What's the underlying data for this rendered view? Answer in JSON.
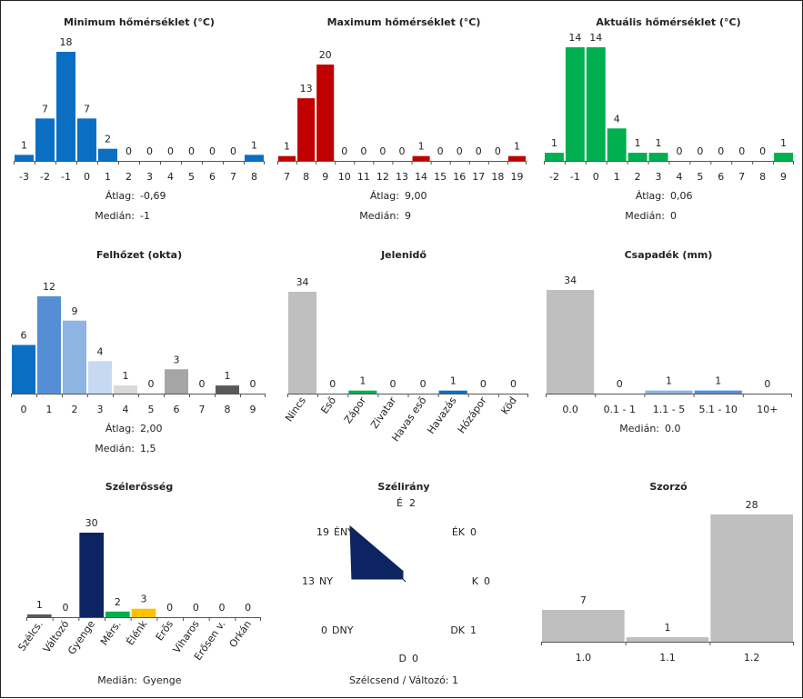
{
  "colors": {
    "blue": "#0a6fc2",
    "red": "#c00000",
    "green": "#00b050",
    "gray": "#bfbfbf",
    "navy": "#0c2461",
    "axis": "#555555",
    "cloud": [
      "#0a6fc2",
      "#558ed5",
      "#8db4e2",
      "#c5d9f1",
      "#d9d9d9",
      "#bfbfbf",
      "#a6a6a6",
      "#808080",
      "#595959",
      "#404040"
    ],
    "weather": [
      "#bfbfbf",
      "#bfbfbf",
      "#00b050",
      "#bfbfbf",
      "#bfbfbf",
      "#0a6fc2",
      "#bfbfbf",
      "#bfbfbf"
    ],
    "precip": [
      "#bfbfbf",
      "#bfbfbf",
      "#8db4e2",
      "#558ed5",
      "#0a6fc2"
    ],
    "wind": [
      "#595959",
      "#bfbfbf",
      "#0c2461",
      "#00b050",
      "#ffc000",
      "#bfbfbf",
      "#bfbfbf",
      "#bfbfbf",
      "#bfbfbf"
    ]
  },
  "chart_data": [
    {
      "id": "min_temp",
      "type": "bar",
      "title": "Minimum hőmérséklet (°C)",
      "categories": [
        "-3",
        "-2",
        "-1",
        "0",
        "1",
        "2",
        "3",
        "4",
        "5",
        "6",
        "7",
        "8"
      ],
      "values": [
        1,
        7,
        18,
        7,
        2,
        0,
        0,
        0,
        0,
        0,
        0,
        1
      ],
      "ylim": [
        0,
        18
      ],
      "stats": [
        {
          "label": "Átlag:",
          "value": "-0,69"
        },
        {
          "label": "Medián:",
          "value": "-1"
        }
      ]
    },
    {
      "id": "max_temp",
      "type": "bar",
      "title": "Maximum hőmérséklet (°C)",
      "categories": [
        "7",
        "8",
        "9",
        "10",
        "11",
        "12",
        "13",
        "14",
        "15",
        "16",
        "17",
        "18",
        "19"
      ],
      "values": [
        1,
        13,
        20,
        0,
        0,
        0,
        0,
        1,
        0,
        0,
        0,
        0,
        1
      ],
      "ylim": [
        0,
        20
      ],
      "stats": [
        {
          "label": "Átlag:",
          "value": "9,00"
        },
        {
          "label": "Medián:",
          "value": "9"
        }
      ]
    },
    {
      "id": "cur_temp",
      "type": "bar",
      "title": "Aktuális hőmérséklet (°C)",
      "categories": [
        "-2",
        "-1",
        "0",
        "1",
        "2",
        "3",
        "4",
        "5",
        "6",
        "7",
        "8",
        "9"
      ],
      "values": [
        1,
        14,
        14,
        4,
        1,
        1,
        0,
        0,
        0,
        0,
        0,
        1
      ],
      "ylim": [
        0,
        14
      ],
      "stats": [
        {
          "label": "Átlag:",
          "value": "0,06"
        },
        {
          "label": "Medián:",
          "value": "0"
        }
      ]
    },
    {
      "id": "cloud",
      "type": "bar",
      "title": "Felhőzet (okta)",
      "categories": [
        "0",
        "1",
        "2",
        "3",
        "4",
        "5",
        "6",
        "7",
        "8",
        "9"
      ],
      "values": [
        6,
        12,
        9,
        4,
        1,
        0,
        3,
        0,
        1,
        0
      ],
      "ylim": [
        0,
        12
      ],
      "stats": [
        {
          "label": "Átlag:",
          "value": "2,00"
        },
        {
          "label": "Medián:",
          "value": "1,5"
        }
      ]
    },
    {
      "id": "weather",
      "type": "bar",
      "title": "Jelenidő",
      "categories": [
        "Nincs",
        "Eső",
        "Zápor",
        "Zivatar",
        "Havas eső",
        "Havazás",
        "Hózápor",
        "Köd"
      ],
      "values": [
        34,
        0,
        1,
        0,
        0,
        1,
        0,
        0
      ],
      "ylim": [
        0,
        34
      ],
      "stats": []
    },
    {
      "id": "precip",
      "type": "bar",
      "title": "Csapadék (mm)",
      "categories": [
        "0.0",
        "0.1 - 1",
        "1.1 - 5",
        "5.1 - 10",
        "10+"
      ],
      "values": [
        34,
        0,
        1,
        1,
        0
      ],
      "ylim": [
        0,
        34
      ],
      "stats": [
        {
          "label": "Medián:",
          "value": "0.0"
        }
      ]
    },
    {
      "id": "wind_strength",
      "type": "bar",
      "title": "Szélerősség",
      "categories": [
        "Szélcs.",
        "Változó",
        "Gyenge",
        "Mérs.",
        "Élénk",
        "Erős",
        "Viharos",
        "Erősen v.",
        "Orkán"
      ],
      "values": [
        1,
        0,
        30,
        2,
        3,
        0,
        0,
        0,
        0
      ],
      "ylim": [
        0,
        30
      ],
      "stats": [
        {
          "label": "Medián:",
          "value": "Gyenge"
        }
      ]
    },
    {
      "id": "wind_dir",
      "type": "radar",
      "title": "Szélirány",
      "directions": [
        "É",
        "ÉK",
        "K",
        "DK",
        "D",
        "DNY",
        "NY",
        "ÉNY"
      ],
      "values": [
        2,
        0,
        0,
        1,
        0,
        0,
        13,
        19
      ],
      "rmax": 19,
      "footer": "Szélcsend / Változó: 1"
    },
    {
      "id": "multiplier",
      "type": "bar",
      "title": "Szorzó",
      "categories": [
        "1.0",
        "1.1",
        "1.2"
      ],
      "values": [
        7,
        1,
        28
      ],
      "ylim": [
        0,
        28
      ],
      "stats": []
    }
  ]
}
